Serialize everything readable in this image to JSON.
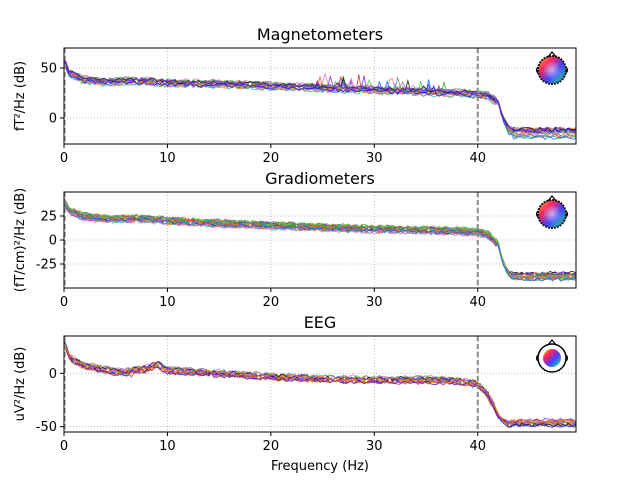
{
  "chart_data": [
    {
      "type": "line",
      "title": "Magnetometers",
      "xlabel": "",
      "ylabel": "fT²/Hz (dB)",
      "xlim": [
        0,
        49.5
      ],
      "ylim": [
        -26,
        70
      ],
      "xticks": [
        0,
        10,
        20,
        30,
        40
      ],
      "yticks": [
        0,
        50
      ],
      "grid": true,
      "vline_x": 40,
      "n_series": 18,
      "profile": {
        "x": [
          0,
          0.5,
          2,
          4,
          6,
          8,
          10,
          15,
          20,
          25,
          30,
          35,
          38,
          40,
          41,
          42,
          43,
          44,
          49.5
        ],
        "y": [
          58,
          45,
          38,
          36,
          37,
          37,
          35,
          34,
          32,
          30,
          28,
          26,
          25,
          24,
          22,
          15,
          -5,
          -14,
          -15
        ]
      },
      "tail_range": [
        -20,
        -10
      ]
    },
    {
      "type": "line",
      "title": "Gradiometers",
      "xlabel": "",
      "ylabel": "(fT/cm)²/Hz (dB)",
      "xlim": [
        0,
        49.5
      ],
      "ylim": [
        -50,
        50
      ],
      "xticks": [
        0,
        10,
        20,
        30,
        40
      ],
      "yticks": [
        -25,
        0,
        25
      ],
      "grid": true,
      "vline_x": 40,
      "n_series": 26,
      "profile": {
        "x": [
          0,
          0.5,
          2,
          4,
          6,
          8,
          10,
          15,
          20,
          25,
          30,
          35,
          38,
          40,
          41,
          42,
          43,
          44,
          49.5
        ],
        "y": [
          40,
          30,
          24,
          22,
          22,
          22,
          20,
          17,
          15,
          13,
          11,
          10,
          9,
          8,
          5,
          -5,
          -30,
          -37,
          -38
        ]
      },
      "tail_range": [
        -41,
        -34
      ]
    },
    {
      "type": "line",
      "title": "EEG",
      "xlabel": "Frequency (Hz)",
      "ylabel": "uV²/Hz (dB)",
      "xlim": [
        0,
        49.5
      ],
      "ylim": [
        -55,
        35
      ],
      "xticks": [
        0,
        10,
        20,
        30,
        40
      ],
      "yticks": [
        -50,
        0
      ],
      "grid": true,
      "vline_x": 40,
      "n_series": 14,
      "profile": {
        "x": [
          0,
          0.5,
          2,
          4,
          6,
          8,
          9,
          10,
          15,
          20,
          25,
          30,
          35,
          38,
          40,
          41,
          42,
          43,
          44,
          49.5
        ],
        "y": [
          30,
          15,
          7,
          3,
          1,
          4,
          8,
          3,
          0,
          -3,
          -5,
          -6,
          -6,
          -7,
          -10,
          -20,
          -40,
          -48,
          -48,
          -49
        ]
      },
      "tail_range": [
        -49,
        -44
      ]
    }
  ],
  "colors": [
    "#1f0cff",
    "#7d2aff",
    "#d62728",
    "#ff7f0e",
    "#2ca02c",
    "#17becf",
    "#8c564b",
    "#e377c2",
    "#bcbd22",
    "#7f7f7f",
    "#ff4f4f",
    "#3fd13f",
    "#0b6bff",
    "#9467bd",
    "#ff9f1f",
    "#111111"
  ]
}
